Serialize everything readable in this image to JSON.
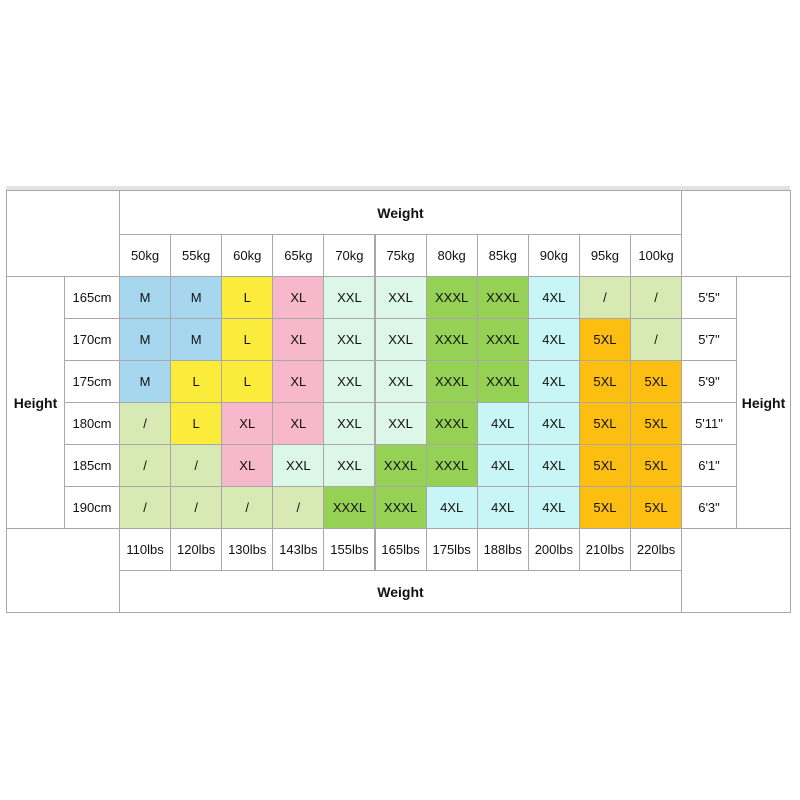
{
  "top_weight_label": "Weight",
  "bottom_weight_label": "Weight",
  "left_height_label": "Height",
  "right_height_label": "Height",
  "kg": [
    "50kg",
    "55kg",
    "60kg",
    "65kg",
    "70kg",
    "75kg",
    "80kg",
    "85kg",
    "90kg",
    "95kg",
    "100kg"
  ],
  "lbs": [
    "110lbs",
    "120lbs",
    "130lbs",
    "143lbs",
    "155lbs",
    "165lbs",
    "175lbs",
    "188lbs",
    "200lbs",
    "210lbs",
    "220lbs"
  ],
  "cm": [
    "165cm",
    "170cm",
    "175cm",
    "180cm",
    "185cm",
    "190cm"
  ],
  "ft": [
    "5'5\"",
    "5'7\"",
    "5'9\"",
    "5'11\"",
    "6'1\"",
    "6'3\""
  ],
  "sizes": [
    [
      "M",
      "M",
      "L",
      "XL",
      "XXL",
      "XXL",
      "XXXL",
      "XXXL",
      "4XL",
      "/",
      "/"
    ],
    [
      "M",
      "M",
      "L",
      "XL",
      "XXL",
      "XXL",
      "XXXL",
      "XXXL",
      "4XL",
      "5XL",
      "/"
    ],
    [
      "M",
      "L",
      "L",
      "XL",
      "XXL",
      "XXL",
      "XXXL",
      "XXXL",
      "4XL",
      "5XL",
      "5XL"
    ],
    [
      "/",
      "L",
      "XL",
      "XL",
      "XXL",
      "XXL",
      "XXXL",
      "4XL",
      "4XL",
      "5XL",
      "5XL"
    ],
    [
      "/",
      "/",
      "XL",
      "XXL",
      "XXL",
      "XXXL",
      "XXXL",
      "4XL",
      "4XL",
      "5XL",
      "5XL"
    ],
    [
      "/",
      "/",
      "/",
      "/",
      "XXXL",
      "XXXL",
      "4XL",
      "4XL",
      "4XL",
      "5XL",
      "5XL"
    ]
  ],
  "size_colors": {
    "M": "#a7d7ee",
    "L": "#fbeb3a",
    "XL": "#f8b8cb",
    "XXL": "#dcf6e7",
    "XXXL": "#94d154",
    "4XL": "#c8f5f5",
    "5XL": "#fcbe10",
    "/": "#d8eab3"
  }
}
